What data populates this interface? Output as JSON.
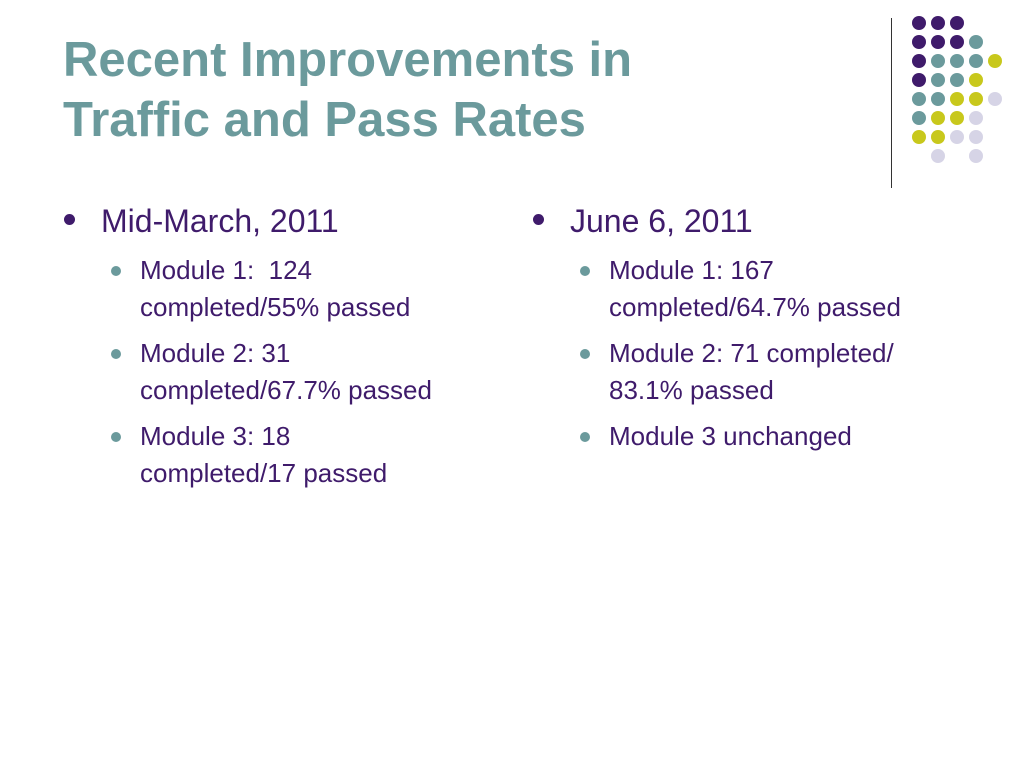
{
  "slide": {
    "title_lines": [
      "Recent Improvements in",
      "Traffic and Pass Rates"
    ],
    "colors": {
      "title": "#6b9a9c",
      "text": "#3f1b6b",
      "sub_bullet": "#6b9a9c",
      "dot_purple": "#3f1b6b",
      "dot_teal": "#6b9a9c",
      "dot_yellow": "#c8c81c",
      "dot_lavender": "#d6d4e6"
    }
  },
  "left_column": {
    "heading": "Mid-March, 2011",
    "items": [
      {
        "lines": [
          "Module 1:  124",
          "completed/55% passed"
        ]
      },
      {
        "lines": [
          "Module 2: 31",
          "completed/67.7% passed"
        ]
      },
      {
        "lines": [
          "Module 3: 18",
          "completed/17 passed"
        ]
      }
    ]
  },
  "right_column": {
    "heading": "June 6, 2011",
    "items": [
      {
        "lines": [
          "Module 1: 167",
          "completed/64.7% passed"
        ]
      },
      {
        "lines": [
          "Module 2: 71 completed/",
          "83.1% passed"
        ]
      },
      {
        "lines": [
          "Module 3 unchanged"
        ]
      }
    ]
  }
}
